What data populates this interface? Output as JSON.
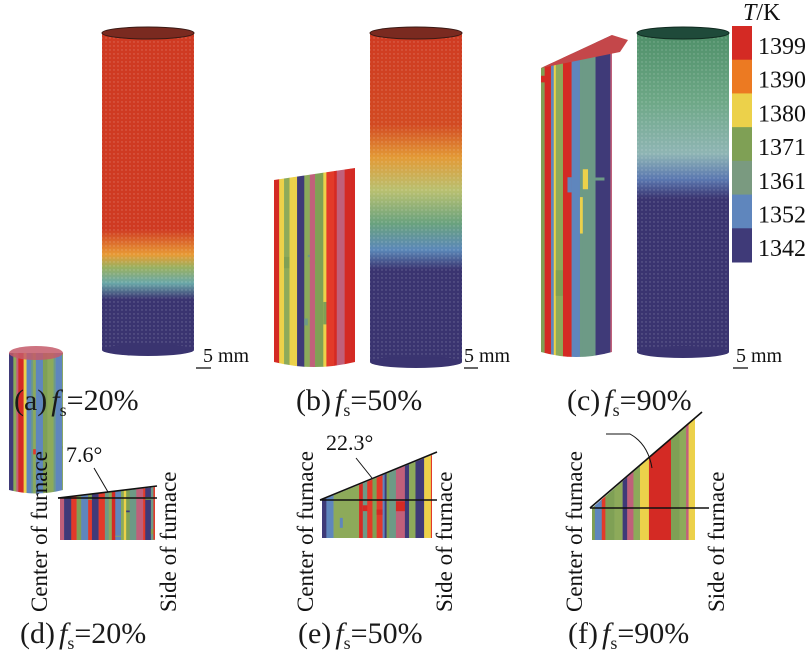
{
  "colorbar": {
    "title_italic": "T",
    "title_unit": "/K",
    "ticks": [
      "1399",
      "1390",
      "1380",
      "1371",
      "1361",
      "1352",
      "1342"
    ],
    "colors": [
      "#d42a24",
      "#ec7a22",
      "#ecd14a",
      "#7fa055",
      "#7a9a80",
      "#5f86bd",
      "#3f3a78"
    ]
  },
  "scale_bar_label": "5 mm",
  "panels_top": [
    {
      "label_pre": "(a)",
      "f": "f",
      "sub": "s",
      "value": "=20%",
      "solid_fraction_pct": 20
    },
    {
      "label_pre": "(b)",
      "f": "f",
      "sub": "s",
      "value": "=50%",
      "solid_fraction_pct": 50
    },
    {
      "label_pre": "(c)",
      "f": "f",
      "sub": "s",
      "value": "=90%",
      "solid_fraction_pct": 90
    }
  ],
  "panels_bottom": [
    {
      "label_pre": "(d)",
      "f": "f",
      "sub": "s",
      "value": "=20%",
      "angle": "7.6°"
    },
    {
      "label_pre": "(e)",
      "f": "f",
      "sub": "s",
      "value": "=50%",
      "angle": "22.3°"
    },
    {
      "label_pre": "(f)",
      "f": "f",
      "sub": "s",
      "value": "=90%",
      "angle": ""
    }
  ],
  "side_labels": {
    "left": "Center of furnace",
    "right": "Side of furnace"
  }
}
